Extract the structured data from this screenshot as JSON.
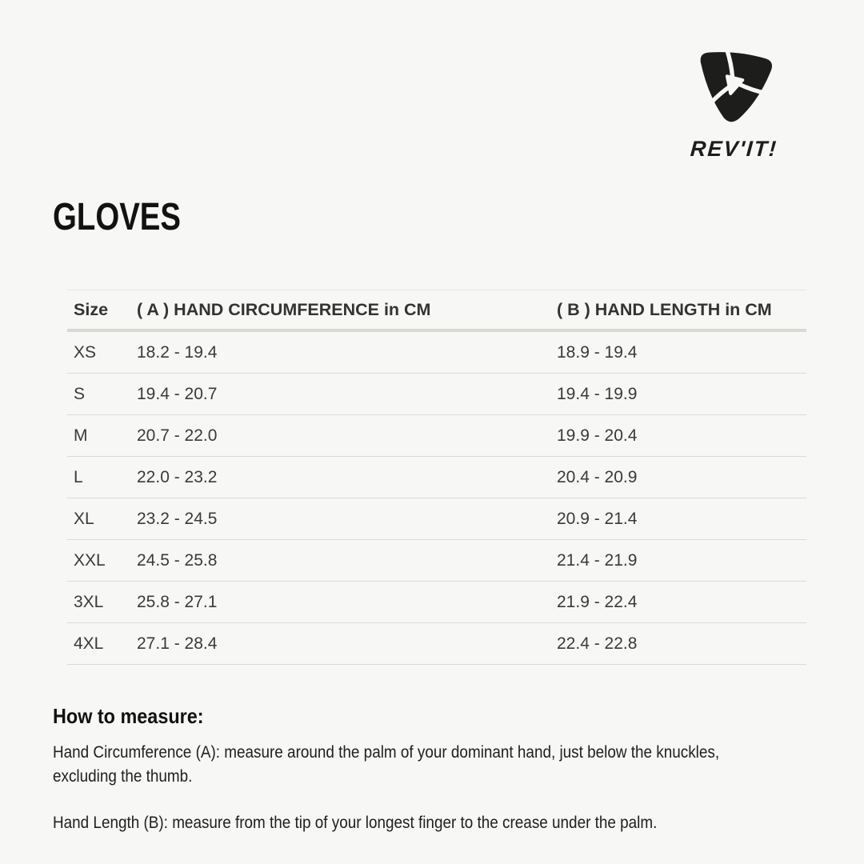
{
  "brand": {
    "wordmark": "REV'IT!",
    "logo_icon": "revit-shield-pinwheel-icon"
  },
  "page_title": "GLOVES",
  "table": {
    "columns": [
      "Size",
      "( A ) HAND CIRCUMFERENCE in CM",
      "( B ) HAND LENGTH in CM"
    ],
    "rows": [
      {
        "size": "XS",
        "circumference": "18.2 - 19.4",
        "length": "18.9 - 19.4"
      },
      {
        "size": "S",
        "circumference": "19.4 - 20.7",
        "length": "19.4 - 19.9"
      },
      {
        "size": "M",
        "circumference": "20.7 - 22.0",
        "length": "19.9 - 20.4"
      },
      {
        "size": "L",
        "circumference": "22.0 - 23.2",
        "length": "20.4 - 20.9"
      },
      {
        "size": "XL",
        "circumference": "23.2 - 24.5",
        "length": "20.9 - 21.4"
      },
      {
        "size": "XXL",
        "circumference": "24.5 - 25.8",
        "length": "21.4 - 21.9"
      },
      {
        "size": "3XL",
        "circumference": "25.8 - 27.1",
        "length": "21.9 - 22.4"
      },
      {
        "size": "4XL",
        "circumference": "27.1 - 28.4",
        "length": "22.4 - 22.8"
      }
    ]
  },
  "how_to_measure": {
    "heading": "How to measure:",
    "paragraph_circumference": "Hand Circumference (A): measure around the palm of your dominant hand, just below the knuckles, excluding the thumb.",
    "paragraph_length": "Hand Length (B): measure from the tip of your longest finger to the crease under the palm."
  },
  "colors": {
    "background": "#f7f7f5",
    "logo": "#1d1d1b",
    "table_text": "#3a3a3a",
    "divider_thin": "#dadad8",
    "divider_thick": "#d8d8d5"
  }
}
